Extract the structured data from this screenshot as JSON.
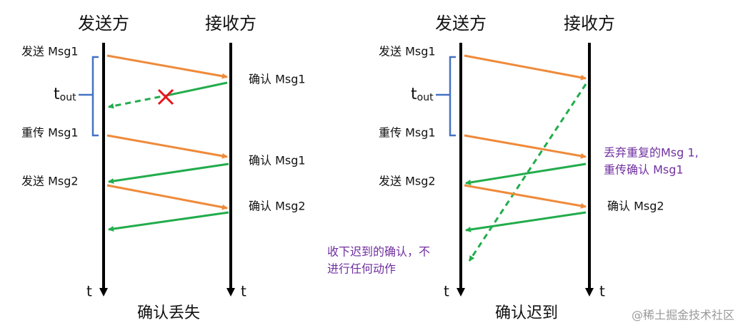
{
  "diagrams": [
    {
      "sender": "发送方",
      "receiver": "接收方",
      "events": [
        "发送 Msg1",
        "确认 Msg1",
        "重传 Msg1",
        "确认 Msg1",
        "发送 Msg2",
        "确认 Msg2"
      ],
      "timeout": {
        "base": "t",
        "sub": "out"
      },
      "time_axis": [
        "t",
        "t"
      ],
      "caption": "确认丢失"
    },
    {
      "sender": "发送方",
      "receiver": "接收方",
      "events": [
        "发送 Msg1",
        "重传 Msg1",
        "丢弃重复的Msg 1,",
        "重传确认 Msg1",
        "发送 Msg2",
        "确认 Msg2",
        "收下迟到的确认，不",
        "进行任何动作"
      ],
      "timeout": {
        "base": "t",
        "sub": "out"
      },
      "time_axis": [
        "t",
        "t"
      ],
      "caption": "确认迟到"
    }
  ],
  "watermark": "@稀土掘金技术社区"
}
